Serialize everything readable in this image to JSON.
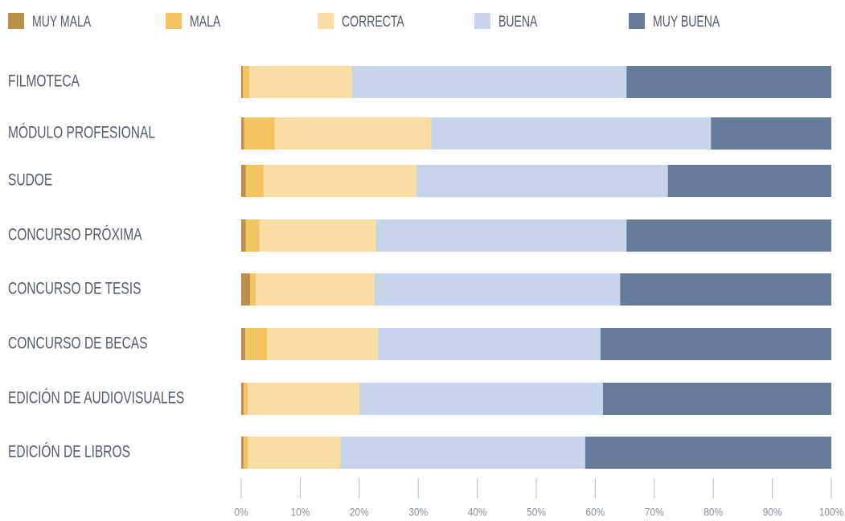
{
  "chart_data": {
    "type": "stacked-bar-horizontal",
    "categories": [
      "FILMOTECA",
      "MÓDULO PROFESIONAL",
      "SUDOE",
      "CONCURSO PRÓXIMA",
      "CONCURSO DE TESIS",
      "CONCURSO DE BECAS",
      "EDICIÓN DE AUDIOVISUALES",
      "EDICIÓN DE LIBROS"
    ],
    "series": [
      {
        "name": "MUY MALA",
        "color": "#b8924a",
        "values": [
          0.3,
          0.5,
          0.8,
          0.8,
          1.5,
          0.7,
          0.4,
          0.4
        ]
      },
      {
        "name": "MALA",
        "color": "#f5c462",
        "values": [
          1.1,
          5.2,
          3.0,
          2.3,
          1.0,
          3.7,
          0.7,
          0.8
        ]
      },
      {
        "name": "CORRECTA",
        "color": "#f9dea3",
        "values": [
          17.4,
          26.5,
          25.9,
          19.7,
          20.1,
          18.8,
          18.9,
          15.6
        ]
      },
      {
        "name": "BUENA",
        "color": "#c8d3ec",
        "values": [
          46.5,
          47.4,
          42.6,
          42.5,
          41.6,
          37.7,
          41.3,
          41.5
        ]
      },
      {
        "name": "MUY BUENA",
        "color": "#687c9a",
        "values": [
          34.7,
          20.4,
          27.7,
          34.7,
          35.8,
          39.1,
          38.7,
          41.7
        ]
      }
    ],
    "xlim": [
      0,
      100
    ],
    "xticks": [
      {
        "value": 0,
        "label": "0%"
      },
      {
        "value": 10,
        "label": "10%"
      },
      {
        "value": 20,
        "label": "20%"
      },
      {
        "value": 30,
        "label": "30%"
      },
      {
        "value": 40,
        "label": "40%"
      },
      {
        "value": 50,
        "label": "50%"
      },
      {
        "value": 60,
        "label": "60%"
      },
      {
        "value": 70,
        "label": "70%"
      },
      {
        "value": 80,
        "label": "80%"
      },
      {
        "value": 90,
        "label": "90%"
      },
      {
        "value": 100,
        "label": "100%"
      }
    ],
    "legend": "top"
  }
}
